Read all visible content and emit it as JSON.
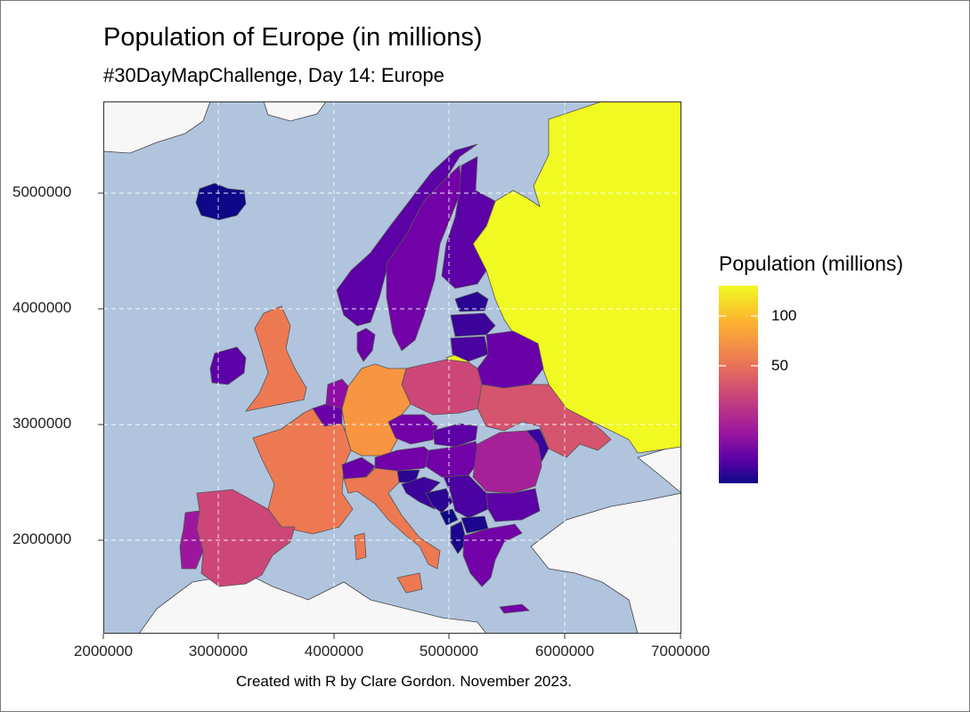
{
  "title": "Population of Europe (in millions)",
  "subtitle": "#30DayMapChallenge, Day 14: Europe",
  "caption": "Created with R by Clare Gordon. November 2023.",
  "legend": {
    "title": "Population (millions)",
    "labels": [
      "100",
      "50"
    ],
    "values": [
      100,
      50
    ],
    "range": [
      0,
      145
    ],
    "palette": [
      "#0d0887",
      "#5c01a6",
      "#9c179e",
      "#cc4778",
      "#ed7953",
      "#fdb42f",
      "#f0f921"
    ]
  },
  "axes": {
    "x_ticks": [
      "2000000",
      "3000000",
      "4000000",
      "5000000",
      "6000000",
      "7000000"
    ],
    "y_ticks": [
      "5000000",
      "4000000",
      "3000000",
      "2000000"
    ]
  },
  "colors": {
    "sea": "#b0c4de",
    "land_outside": "#f7f7f7",
    "border": "#555555",
    "grid": "#ffffff"
  }
}
